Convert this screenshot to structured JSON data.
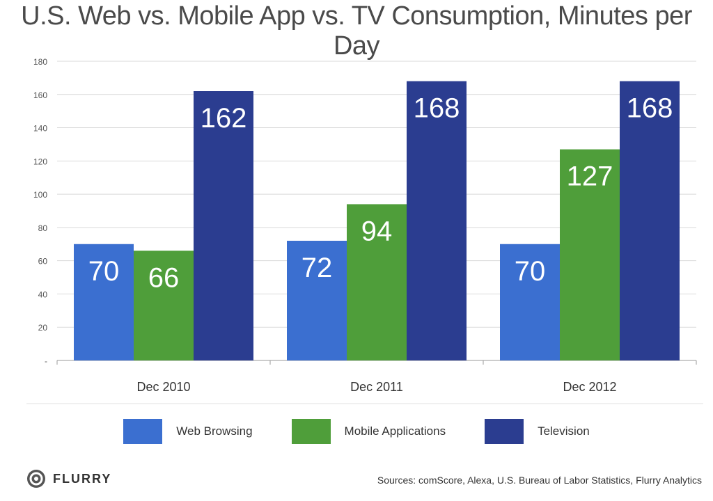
{
  "chart_data": {
    "type": "bar",
    "title": "U.S. Web vs. Mobile App vs. TV Consumption, Minutes per Day",
    "categories": [
      "Dec 2010",
      "Dec 2011",
      "Dec 2012"
    ],
    "series": [
      {
        "name": "Web Browsing",
        "values": [
          70,
          72,
          70
        ],
        "color": "#3b6fd0"
      },
      {
        "name": "Mobile Applications",
        "values": [
          66,
          94,
          127
        ],
        "color": "#4f9e3a"
      },
      {
        "name": "Television",
        "values": [
          162,
          168,
          168
        ],
        "color": "#2b3d90"
      }
    ],
    "ylim": [
      0,
      180
    ],
    "yticks": [
      0,
      20,
      40,
      60,
      80,
      100,
      120,
      140,
      160,
      180
    ],
    "ytick_labels": [
      "-",
      "20",
      "40",
      "60",
      "80",
      "100",
      "120",
      "140",
      "160",
      "180"
    ],
    "grid": true,
    "legend_position": "bottom",
    "data_labels": true
  },
  "footer": {
    "logo_text": "FLURRY",
    "sources": "Sources: comScore, Alexa, U.S. Bureau of Labor Statistics, Flurry Analytics"
  }
}
